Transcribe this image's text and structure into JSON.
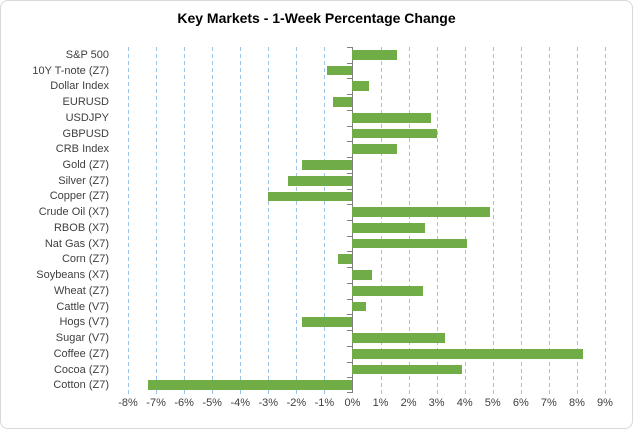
{
  "chart_data": {
    "type": "bar",
    "orientation": "horizontal",
    "title": "Key Markets - 1-Week Percentage Change",
    "categories": [
      "S&P 500",
      "10Y T-note (Z7)",
      "Dollar Index",
      "EURUSD",
      "USDJPY",
      "GBPUSD",
      "CRB Index",
      "Gold (Z7)",
      "Silver (Z7)",
      "Copper (Z7)",
      "Crude Oil (X7)",
      "RBOB (X7)",
      "Nat Gas (X7)",
      "Corn (Z7)",
      "Soybeans (X7)",
      "Wheat (Z7)",
      "Cattle (V7)",
      "Hogs (V7)",
      "Sugar (V7)",
      "Coffee (Z7)",
      "Cocoa (Z7)",
      "Cotton (Z7)"
    ],
    "values": [
      1.6,
      -0.9,
      0.6,
      -0.7,
      2.8,
      3.0,
      1.6,
      -1.8,
      -2.3,
      -3.0,
      4.9,
      2.6,
      4.1,
      -0.5,
      0.7,
      2.5,
      0.5,
      -1.8,
      3.3,
      8.2,
      3.9,
      -7.3
    ],
    "unit": "%",
    "xlabel": "",
    "ylabel": "",
    "xlim": [
      -8.5,
      9.5
    ],
    "x_ticks": [
      -8,
      -7,
      -6,
      -5,
      -4,
      -3,
      -2,
      -1,
      0,
      1,
      2,
      3,
      4,
      5,
      6,
      7,
      8,
      9
    ],
    "x_tick_labels": [
      "-8%",
      "-7%",
      "-6%",
      "-5%",
      "-4%",
      "-3%",
      "-2%",
      "-1%",
      "0%",
      "1%",
      "2%",
      "3%",
      "4%",
      "5%",
      "6%",
      "7%",
      "8%",
      "9%"
    ],
    "grid": true,
    "legend": false,
    "colors": {
      "bar": "#70AD47",
      "gridline": "#9DC3E6",
      "axis_line": "#808080",
      "tick": "#808080",
      "label_text": "#3F3F3F",
      "title_text": "#000000",
      "frame_border": "#D9D9D9",
      "background": "#FFFFFF"
    }
  }
}
